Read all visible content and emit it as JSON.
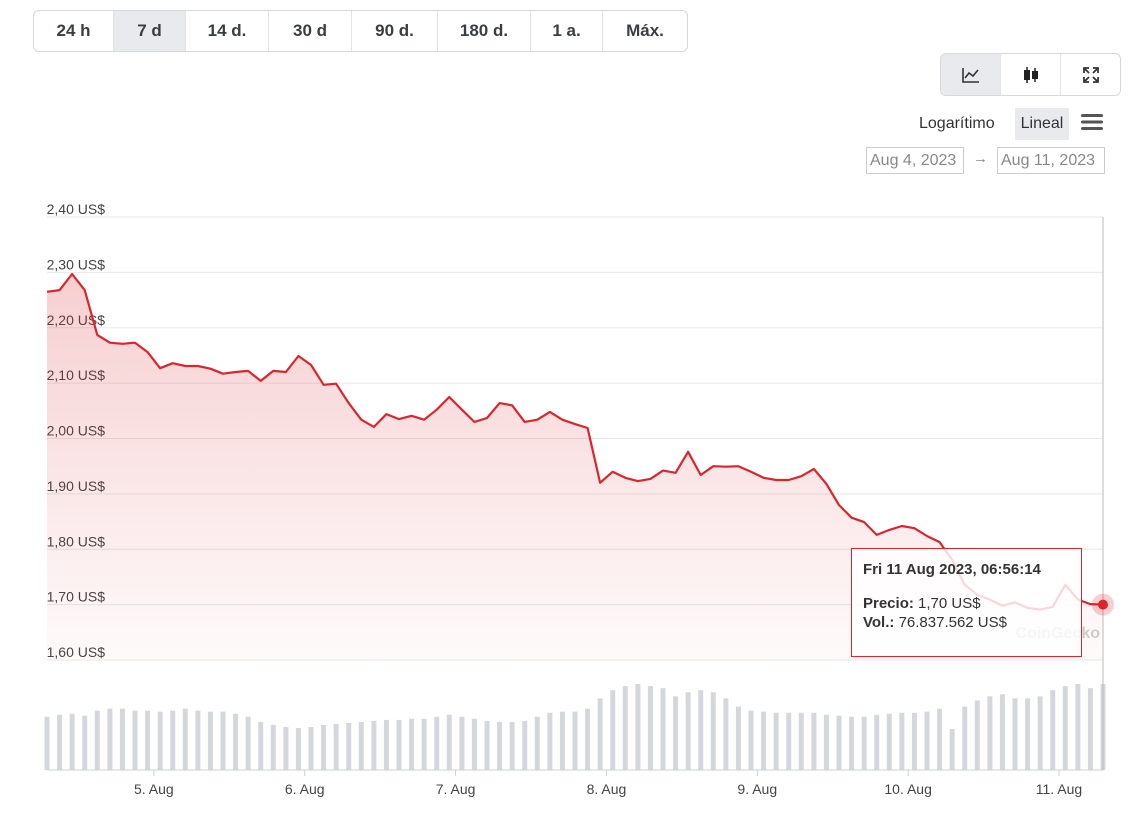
{
  "controls": {
    "ranges": [
      "24 h",
      "7 d",
      "14 d.",
      "30 d",
      "90 d.",
      "180 d.",
      "1 a.",
      "Máx."
    ],
    "selected_range": 1,
    "scale_options": [
      "Logarítimo",
      "Lineal"
    ],
    "selected_scale": 1,
    "date_from": "Aug 4, 2023",
    "date_to": "Aug 11, 2023"
  },
  "tooltip": {
    "title": "Fri 11 Aug 2023, 06:56:14",
    "price_label": "Precio:",
    "price": "1,70 US$",
    "volume_label": "Vol.:",
    "volume": "76.837.562 US$"
  },
  "watermark": "CoinGecko",
  "chart_data": {
    "type": "line",
    "color": "#d9262c",
    "x": [
      "2023-08-04T07:00",
      "2023-08-04T09:00",
      "2023-08-04T11:00",
      "2023-08-04T13:00",
      "2023-08-04T15:00",
      "2023-08-04T17:00",
      "2023-08-04T19:00",
      "2023-08-04T21:00",
      "2023-08-04T23:00",
      "2023-08-05T01:00",
      "2023-08-05T03:00",
      "2023-08-05T05:00",
      "2023-08-05T07:00",
      "2023-08-05T09:00",
      "2023-08-05T11:00",
      "2023-08-05T13:00",
      "2023-08-05T15:00",
      "2023-08-05T17:00",
      "2023-08-05T19:00",
      "2023-08-05T21:00",
      "2023-08-05T23:00",
      "2023-08-06T01:00",
      "2023-08-06T03:00",
      "2023-08-06T05:00",
      "2023-08-06T07:00",
      "2023-08-06T09:00",
      "2023-08-06T11:00",
      "2023-08-06T13:00",
      "2023-08-06T15:00",
      "2023-08-06T17:00",
      "2023-08-06T19:00",
      "2023-08-06T21:00",
      "2023-08-06T23:00",
      "2023-08-07T01:00",
      "2023-08-07T03:00",
      "2023-08-07T05:00",
      "2023-08-07T07:00",
      "2023-08-07T09:00",
      "2023-08-07T11:00",
      "2023-08-07T13:00",
      "2023-08-07T15:00",
      "2023-08-07T17:00",
      "2023-08-07T19:00",
      "2023-08-07T21:00",
      "2023-08-07T23:00",
      "2023-08-08T01:00",
      "2023-08-08T03:00",
      "2023-08-08T05:00",
      "2023-08-08T07:00",
      "2023-08-08T09:00",
      "2023-08-08T11:00",
      "2023-08-08T13:00",
      "2023-08-08T15:00",
      "2023-08-08T17:00",
      "2023-08-08T19:00",
      "2023-08-08T21:00",
      "2023-08-08T23:00",
      "2023-08-09T01:00",
      "2023-08-09T03:00",
      "2023-08-09T05:00",
      "2023-08-09T07:00",
      "2023-08-09T09:00",
      "2023-08-09T11:00",
      "2023-08-09T13:00",
      "2023-08-09T15:00",
      "2023-08-09T17:00",
      "2023-08-09T19:00",
      "2023-08-09T21:00",
      "2023-08-09T23:00",
      "2023-08-10T01:00",
      "2023-08-10T03:00",
      "2023-08-10T05:00",
      "2023-08-10T07:00",
      "2023-08-10T09:00",
      "2023-08-10T11:00",
      "2023-08-10T13:00",
      "2023-08-10T15:00",
      "2023-08-10T17:00",
      "2023-08-10T19:00",
      "2023-08-10T21:00",
      "2023-08-10T23:00",
      "2023-08-11T01:00",
      "2023-08-11T03:00",
      "2023-08-11T05:00",
      "2023-08-11T07:00"
    ],
    "values": [
      2.265,
      2.268,
      2.297,
      2.268,
      2.187,
      2.173,
      2.171,
      2.173,
      2.156,
      2.127,
      2.136,
      2.131,
      2.131,
      2.126,
      2.117,
      2.12,
      2.122,
      2.104,
      2.122,
      2.12,
      2.149,
      2.133,
      2.097,
      2.099,
      2.064,
      2.034,
      2.021,
      2.044,
      2.035,
      2.041,
      2.034,
      2.052,
      2.075,
      2.052,
      2.03,
      2.037,
      2.064,
      2.06,
      2.03,
      2.034,
      2.048,
      2.034,
      2.026,
      2.019,
      1.92,
      1.94,
      1.929,
      1.923,
      1.927,
      1.942,
      1.938,
      1.976,
      1.934,
      1.95,
      1.949,
      1.95,
      1.94,
      1.929,
      1.925,
      1.925,
      1.932,
      1.945,
      1.918,
      1.88,
      1.857,
      1.849,
      1.826,
      1.835,
      1.842,
      1.838,
      1.824,
      1.813,
      1.781,
      1.736,
      1.718,
      1.709,
      1.698,
      1.704,
      1.694,
      1.691,
      1.696,
      1.736,
      1.709,
      1.701,
      1.7
    ],
    "volume": {
      "color": "#d4d7dc",
      "values": [
        47600000,
        49400000,
        50300000,
        48500000,
        53100000,
        54900000,
        54900000,
        53100000,
        53100000,
        52200000,
        53100000,
        54900000,
        53100000,
        52200000,
        52200000,
        50300000,
        47600000,
        43000000,
        40300000,
        38400000,
        37500000,
        38400000,
        40300000,
        41200000,
        42100000,
        43000000,
        43900000,
        44800000,
        44800000,
        45800000,
        45800000,
        47600000,
        49400000,
        47600000,
        45800000,
        43900000,
        43000000,
        43000000,
        43900000,
        47600000,
        51200000,
        52200000,
        52200000,
        54900000,
        64100000,
        71400000,
        75000000,
        76900000,
        75000000,
        73200000,
        65900000,
        69500000,
        71400000,
        69500000,
        64100000,
        56700000,
        53100000,
        52200000,
        51200000,
        51200000,
        51200000,
        51200000,
        49400000,
        48500000,
        47600000,
        47600000,
        49400000,
        50300000,
        51200000,
        51200000,
        52200000,
        54900000,
        36600000,
        56700000,
        62200000,
        65900000,
        67700000,
        64100000,
        64100000,
        65900000,
        71400000,
        75000000,
        76900000,
        73200000,
        76837562
      ]
    },
    "xlim": [
      "2023-08-04T07:00",
      "2023-08-11T07:00"
    ],
    "xticks": [
      {
        "value": "2023-08-05T00:00",
        "label": "5. Aug"
      },
      {
        "value": "2023-08-06T00:00",
        "label": "6. Aug"
      },
      {
        "value": "2023-08-07T00:00",
        "label": "7. Aug"
      },
      {
        "value": "2023-08-08T00:00",
        "label": "8. Aug"
      },
      {
        "value": "2023-08-09T00:00",
        "label": "9. Aug"
      },
      {
        "value": "2023-08-10T00:00",
        "label": "10. Aug"
      },
      {
        "value": "2023-08-11T00:00",
        "label": "11. Aug"
      }
    ],
    "ylim": [
      1.6,
      2.4
    ],
    "yticks": [
      {
        "value": 1.6,
        "label": "1,60 US$"
      },
      {
        "value": 1.7,
        "label": "1,70 US$"
      },
      {
        "value": 1.8,
        "label": "1,80 US$"
      },
      {
        "value": 1.9,
        "label": "1,90 US$"
      },
      {
        "value": 2.0,
        "label": "2,00 US$"
      },
      {
        "value": 2.1,
        "label": "2,10 US$"
      },
      {
        "value": 2.2,
        "label": "2,20 US$"
      },
      {
        "value": 2.3,
        "label": "2,30 US$"
      },
      {
        "value": 2.4,
        "label": "2,40 US$"
      }
    ],
    "grid": true
  }
}
